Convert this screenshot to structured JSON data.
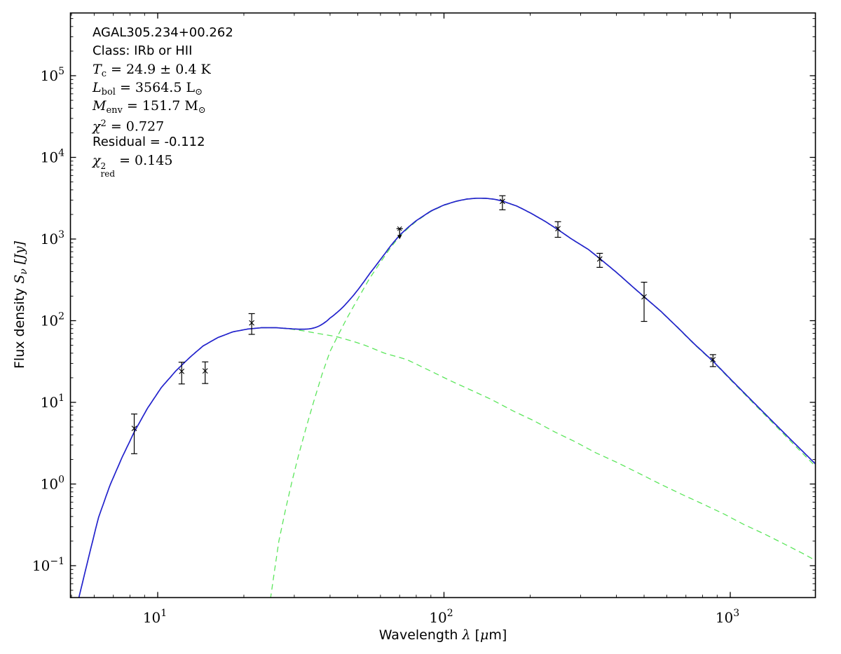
{
  "annotation": {
    "lines": [
      [
        {
          "t": "AGAL305.234+00.262",
          "f": "sans"
        }
      ],
      [
        {
          "t": "Class: IRb or HII",
          "f": "sans"
        }
      ],
      [
        {
          "t": "T",
          "f": "it"
        },
        {
          "t": "c",
          "f": "rm",
          "pos": "sub"
        },
        {
          "t": " = 24.9 ± 0.4 K",
          "f": "rm"
        }
      ],
      [
        {
          "t": "L",
          "f": "it"
        },
        {
          "t": "bol",
          "f": "rm",
          "pos": "sub"
        },
        {
          "t": " = 3564.5 L",
          "f": "rm"
        },
        {
          "t": "⊙",
          "f": "rm",
          "pos": "sub"
        }
      ],
      [
        {
          "t": "M",
          "f": "it"
        },
        {
          "t": "env",
          "f": "rm",
          "pos": "sub"
        },
        {
          "t": " = 151.7 M",
          "f": "rm"
        },
        {
          "t": "⊙",
          "f": "rm",
          "pos": "sub"
        }
      ],
      [
        {
          "t": "χ",
          "f": "it"
        },
        {
          "t": "2",
          "f": "rm",
          "pos": "sup"
        },
        {
          "t": " = 0.727",
          "f": "rm"
        }
      ],
      [
        {
          "t": "Residual = -0.112",
          "f": "sans"
        }
      ],
      [
        {
          "t": "χ",
          "f": "it"
        },
        {
          "t": "2",
          "f": "rm",
          "pos": "sup"
        },
        {
          "t": "red",
          "f": "rm",
          "pos": "sub"
        },
        {
          "t": " = 0.145",
          "f": "rm"
        }
      ]
    ]
  },
  "chart_data": {
    "type": "line",
    "title": "",
    "xlabel_parts": [
      {
        "t": "Wavelength ",
        "f": "sans"
      },
      {
        "t": "λ",
        "f": "it"
      },
      {
        "t": " [",
        "f": "sans"
      },
      {
        "t": "μ",
        "f": "it"
      },
      {
        "t": "m]",
        "f": "sans"
      }
    ],
    "ylabel_parts": [
      {
        "t": "Flux density ",
        "f": "sans"
      },
      {
        "t": "S",
        "f": "it"
      },
      {
        "t": "ν",
        "f": "it",
        "pos": "sub"
      },
      {
        "t": " [",
        "f": "it"
      },
      {
        "t": "Jy",
        "f": "it"
      },
      {
        "t": "]",
        "f": "it"
      }
    ],
    "x_axis": {
      "scale": "log",
      "unit": "μm",
      "min": 4.95,
      "max": 1995,
      "major_ticks": [
        {
          "value": 10,
          "exp": "1"
        },
        {
          "value": 100,
          "exp": "2"
        },
        {
          "value": 1000,
          "exp": "3"
        }
      ]
    },
    "y_axis": {
      "scale": "log",
      "unit": "Jy",
      "min": 0.0403,
      "max": 590000,
      "major_ticks": [
        {
          "value": 100000,
          "exp": "5"
        },
        {
          "value": 10000,
          "exp": "4"
        },
        {
          "value": 1000,
          "exp": "3"
        },
        {
          "value": 100,
          "exp": "2"
        },
        {
          "value": 10,
          "exp": "1"
        },
        {
          "value": 1,
          "exp": "0"
        },
        {
          "value": 0.1,
          "exp": "−1"
        }
      ]
    },
    "colors": {
      "model_total": "#2222cc",
      "components": "#5ce65c",
      "data": "#000000"
    },
    "legend": "none",
    "grid": false,
    "series": [
      {
        "name": "warm-component",
        "style": "dashed",
        "color": "#5ce65c",
        "points": [
          [
            5.0,
            0.022
          ],
          [
            5.3,
            0.04
          ],
          [
            5.7,
            0.115
          ],
          [
            6.2,
            0.38
          ],
          [
            6.8,
            0.95
          ],
          [
            7.5,
            2.1
          ],
          [
            8.3,
            4.4
          ],
          [
            9.2,
            8.4
          ],
          [
            10.3,
            15.2
          ],
          [
            11.6,
            24.5
          ],
          [
            13,
            36
          ],
          [
            14.4,
            49
          ],
          [
            16.2,
            62
          ],
          [
            18.3,
            73
          ],
          [
            20.6,
            79
          ],
          [
            23,
            82
          ],
          [
            26,
            82
          ],
          [
            29,
            79
          ],
          [
            32,
            75.5
          ],
          [
            36,
            70
          ],
          [
            42,
            64
          ],
          [
            48,
            56
          ],
          [
            53,
            50
          ],
          [
            62,
            40
          ],
          [
            74,
            33.5
          ],
          [
            88,
            25
          ],
          [
            105,
            18.5
          ],
          [
            125,
            14
          ],
          [
            146,
            10.9
          ],
          [
            175,
            7.8
          ],
          [
            205,
            6.0
          ],
          [
            245,
            4.3
          ],
          [
            287,
            3.3
          ],
          [
            340,
            2.4
          ],
          [
            403,
            1.83
          ],
          [
            480,
            1.35
          ],
          [
            566,
            1.01
          ],
          [
            670,
            0.76
          ],
          [
            793,
            0.58
          ],
          [
            950,
            0.43
          ],
          [
            1115,
            0.32
          ],
          [
            1330,
            0.24
          ],
          [
            1565,
            0.18
          ],
          [
            1800,
            0.14
          ],
          [
            2000,
            0.114
          ]
        ]
      },
      {
        "name": "cold-envelope-component",
        "style": "dashed",
        "color": "#5ce65c",
        "points": [
          [
            24.5,
            0.03
          ],
          [
            25.5,
            0.08
          ],
          [
            26.5,
            0.2
          ],
          [
            28,
            0.5
          ],
          [
            29.5,
            1.1
          ],
          [
            31,
            2.2
          ],
          [
            33,
            4.9
          ],
          [
            35,
            10
          ],
          [
            37.5,
            22
          ],
          [
            40,
            42
          ],
          [
            43,
            70
          ],
          [
            46,
            110
          ],
          [
            50,
            185
          ],
          [
            55,
            330
          ],
          [
            60,
            520
          ],
          [
            65,
            780
          ],
          [
            70,
            1080
          ],
          [
            75,
            1360
          ],
          [
            80,
            1650
          ],
          [
            90,
            2180
          ],
          [
            100,
            2590
          ],
          [
            110,
            2880
          ],
          [
            120,
            3070
          ],
          [
            130,
            3150
          ],
          [
            140,
            3140
          ],
          [
            150,
            3060
          ],
          [
            160,
            2910
          ],
          [
            180,
            2520
          ],
          [
            200,
            2090
          ],
          [
            225,
            1650
          ],
          [
            250,
            1300
          ],
          [
            280,
            990
          ],
          [
            320,
            740
          ],
          [
            350,
            575
          ],
          [
            400,
            390
          ],
          [
            450,
            270
          ],
          [
            500,
            195
          ],
          [
            570,
            131
          ],
          [
            650,
            84
          ],
          [
            750,
            51
          ],
          [
            870,
            31.5
          ],
          [
            1000,
            19
          ],
          [
            1200,
            9.9
          ],
          [
            1400,
            5.7
          ],
          [
            1700,
            2.85
          ],
          [
            2000,
            1.6
          ]
        ]
      },
      {
        "name": "model-total",
        "style": "solid",
        "color": "#2222cc",
        "derived": "sum of warm-component and cold-envelope-component"
      }
    ],
    "data_points": [
      {
        "wavelength_um": 8.28,
        "flux_jy": 4.8,
        "err_hi": 7.2,
        "err_lo": 2.35
      },
      {
        "wavelength_um": 12.13,
        "flux_jy": 24.0,
        "err_hi": 31.0,
        "err_lo": 16.8
      },
      {
        "wavelength_um": 14.65,
        "flux_jy": 24.3,
        "err_hi": 31.3,
        "err_lo": 17.0
      },
      {
        "wavelength_um": 21.3,
        "flux_jy": 94,
        "err_hi": 122,
        "err_lo": 68
      },
      {
        "wavelength_um": 160,
        "flux_jy": 2890,
        "err_hi": 3390,
        "err_lo": 2280
      },
      {
        "wavelength_um": 250,
        "flux_jy": 1340,
        "err_hi": 1630,
        "err_lo": 1050
      },
      {
        "wavelength_um": 350,
        "flux_jy": 570,
        "err_hi": 668,
        "err_lo": 450
      },
      {
        "wavelength_um": 500,
        "flux_jy": 196,
        "err_hi": 296,
        "err_lo": 98
      },
      {
        "wavelength_um": 870,
        "flux_jy": 33.4,
        "err_hi": 38.4,
        "err_lo": 27.4
      }
    ],
    "upper_limits": [
      {
        "wavelength_um": 70,
        "flux_jy": 1340
      }
    ]
  }
}
